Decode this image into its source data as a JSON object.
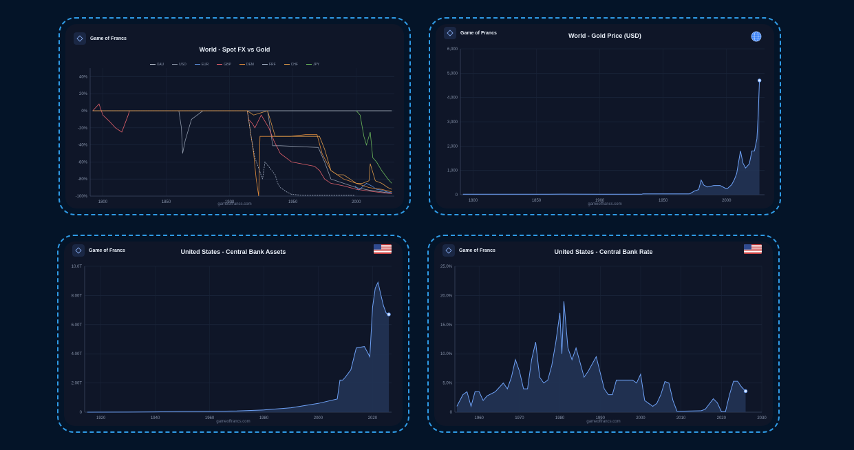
{
  "brand": "Game of Francs",
  "watermark": "gameoffrancs.com",
  "colors": {
    "accent": "#4f8ff7",
    "border": "#2f9be6",
    "bg": "#041428",
    "panel": "#0f1628"
  },
  "charts": [
    {
      "id": "fx",
      "title": "World - Spot FX vs Gold",
      "icon": "none",
      "legend": [
        {
          "name": "XAU",
          "color": "#b8c0cc"
        },
        {
          "name": "USD",
          "color": "#8d97a8"
        },
        {
          "name": "EUR",
          "color": "#5b8dd6"
        },
        {
          "name": "GBP",
          "color": "#e0606b"
        },
        {
          "name": "DEM",
          "color": "#e08c3c"
        },
        {
          "name": "FRF",
          "color": "#a7b3c8"
        },
        {
          "name": "CHF",
          "color": "#d89748"
        },
        {
          "name": "JPY",
          "color": "#69b55a"
        }
      ]
    },
    {
      "id": "gold",
      "title": "World - Gold Price (USD)",
      "icon": "globe-icon"
    },
    {
      "id": "assets",
      "title": "United States - Central Bank Assets",
      "icon": "us-flag-icon"
    },
    {
      "id": "rate",
      "title": "United States - Central Bank Rate",
      "icon": "us-flag-icon"
    }
  ],
  "chart_data": [
    {
      "type": "line",
      "title": "World - Spot FX vs Gold",
      "xlabel": "",
      "ylabel": "",
      "xlim": [
        1790,
        2030
      ],
      "ylim": [
        -100,
        50
      ],
      "x_ticks": [
        "1800",
        "1850",
        "1900",
        "1950",
        "2000"
      ],
      "x_tick_values": [
        1800,
        1850,
        1900,
        1950,
        2000
      ],
      "y_ticks": [
        "40%",
        "20%",
        "0%",
        "-20%",
        "-40%",
        "-60%",
        "-80%",
        "-100%"
      ],
      "y_tick_values": [
        40,
        20,
        0,
        -20,
        -40,
        -60,
        -80,
        -100
      ],
      "series": [
        {
          "name": "XAU",
          "color": "#b8c0cc",
          "x": [
            1792,
            2028
          ],
          "y": [
            0,
            0
          ]
        },
        {
          "name": "USD",
          "color": "#8d97a8",
          "x": [
            1792,
            1860,
            1862,
            1863,
            1865,
            1870,
            1879,
            1930,
            1933,
            1934,
            1940,
            1970,
            1975,
            1980,
            1990,
            2000,
            2010,
            2020,
            2028
          ],
          "y": [
            0,
            0,
            -20,
            -50,
            -35,
            -10,
            0,
            0,
            -30,
            -41,
            -41,
            -43,
            -60,
            -80,
            -85,
            -90,
            -93,
            -95,
            -97
          ]
        },
        {
          "name": "EUR",
          "color": "#5b8dd6",
          "x": [
            1999,
            2002,
            2008,
            2012,
            2016,
            2020,
            2024,
            2028
          ],
          "y": [
            -88,
            -93,
            -85,
            -88,
            -92,
            -93,
            -95,
            -96
          ]
        },
        {
          "name": "GBP",
          "color": "#e0606b",
          "x": [
            1792,
            1797,
            1800,
            1805,
            1810,
            1815,
            1820,
            1821,
            1914,
            1915,
            1918,
            1920,
            1925,
            1931,
            1935,
            1940,
            1949,
            1967,
            1971,
            1975,
            1980,
            1990,
            2000,
            2010,
            2020,
            2028
          ],
          "y": [
            0,
            8,
            -5,
            -12,
            -20,
            -25,
            -5,
            0,
            0,
            -10,
            -15,
            -20,
            -5,
            -20,
            -35,
            -50,
            -60,
            -65,
            -70,
            -80,
            -85,
            -88,
            -92,
            -94,
            -96,
            -97
          ]
        },
        {
          "name": "DEM",
          "color": "#e08c3c",
          "x": [
            1792,
            1871,
            1914,
            1916,
            1919,
            1921,
            1923,
            1924,
            1930,
            1948,
            1960,
            1969,
            1973,
            1980,
            1990,
            2000,
            2010,
            2020,
            2028
          ],
          "y": [
            0,
            0,
            0,
            -20,
            -50,
            -80,
            -100,
            -30,
            -30,
            -30,
            -28,
            -28,
            -50,
            -70,
            -80,
            -85,
            -90,
            -92,
            -95
          ]
        },
        {
          "name": "FRF",
          "color": "#a7b3c8",
          "x": [
            1792,
            1914,
            1917,
            1920,
            1926,
            1928,
            1936,
            1938,
            1940,
            1945,
            1949,
            1958,
            1969,
            1975,
            1985,
            1999
          ],
          "y": [
            0,
            0,
            -30,
            -55,
            -80,
            -60,
            -75,
            -85,
            -90,
            -95,
            -98,
            -99,
            -99,
            -99,
            -99,
            -99
          ]
        },
        {
          "name": "CHF",
          "color": "#d89748",
          "x": [
            1792,
            1850,
            1914,
            1919,
            1930,
            1936,
            1940,
            1971,
            1975,
            1980,
            1985,
            1990,
            1995,
            2000,
            2005,
            2010,
            2011,
            2015,
            2020,
            2025,
            2028
          ],
          "y": [
            0,
            0,
            0,
            -5,
            0,
            -30,
            -30,
            -30,
            -45,
            -70,
            -75,
            -75,
            -80,
            -85,
            -85,
            -82,
            -62,
            -82,
            -85,
            -90,
            -92
          ]
        },
        {
          "name": "JPY",
          "color": "#69b55a",
          "x": [
            2000,
            2003,
            2006,
            2008,
            2011,
            2013,
            2016,
            2020,
            2025,
            2028
          ],
          "y": [
            0,
            -5,
            -30,
            -40,
            -25,
            -55,
            -60,
            -70,
            -80,
            -85
          ]
        }
      ]
    },
    {
      "type": "area",
      "title": "World - Gold Price (USD)",
      "xlabel": "",
      "ylabel": "",
      "xlim": [
        1790,
        2030
      ],
      "ylim": [
        0,
        6000
      ],
      "x_ticks": [
        "1800",
        "1850",
        "1900",
        "1950",
        "2000"
      ],
      "x_tick_values": [
        1800,
        1850,
        1900,
        1950,
        2000
      ],
      "y_ticks": [
        "0",
        "1,000",
        "2,000",
        "3,000",
        "4,000",
        "5,000",
        "6,000"
      ],
      "y_tick_values": [
        0,
        1000,
        2000,
        3000,
        4000,
        5000,
        6000
      ],
      "series": [
        {
          "name": "",
          "x": [
            1792,
            1830,
            1860,
            1870,
            1900,
            1933,
            1934,
            1970,
            1971,
            1975,
            1978,
            1980,
            1982,
            1985,
            1990,
            1995,
            1999,
            2001,
            2004,
            2006,
            2008,
            2011,
            2013,
            2015,
            2018,
            2020,
            2022,
            2024,
            2025,
            2026
          ],
          "y": [
            19,
            19,
            20,
            25,
            20,
            20,
            35,
            35,
            40,
            160,
            210,
            600,
            400,
            320,
            380,
            380,
            270,
            270,
            410,
            600,
            870,
            1800,
            1300,
            1100,
            1270,
            1800,
            1800,
            2300,
            3300,
            4700
          ]
        }
      ]
    },
    {
      "type": "area",
      "title": "United States - Central Bank Assets",
      "xlabel": "",
      "ylabel": "",
      "xlim": [
        1914,
        2027
      ],
      "ylim": [
        0,
        10
      ],
      "x_ticks": [
        "1920",
        "1940",
        "1960",
        "1980",
        "2000",
        "2020"
      ],
      "x_tick_values": [
        1920,
        1940,
        1960,
        1980,
        2000,
        2020
      ],
      "y_ticks": [
        "0",
        "2.00T",
        "4.00T",
        "6.00T",
        "8.00T",
        "10.0T"
      ],
      "y_tick_values": [
        0,
        2,
        4,
        6,
        8,
        10
      ],
      "unit": "T",
      "series": [
        {
          "name": "",
          "x": [
            1915,
            1930,
            1940,
            1950,
            1960,
            1970,
            1980,
            1990,
            2000,
            2007,
            2008,
            2009,
            2010,
            2012,
            2014,
            2017,
            2019,
            2020,
            2021,
            2022,
            2023,
            2024,
            2025,
            2026
          ],
          "y": [
            0.001,
            0.005,
            0.02,
            0.05,
            0.05,
            0.08,
            0.15,
            0.3,
            0.6,
            0.9,
            2.2,
            2.2,
            2.4,
            2.9,
            4.4,
            4.5,
            3.8,
            7.2,
            8.5,
            8.9,
            8.1,
            7.3,
            6.8,
            6.7
          ]
        }
      ]
    },
    {
      "type": "area",
      "title": "United States - Central Bank Rate",
      "xlabel": "",
      "ylabel": "",
      "xlim": [
        1954,
        2030
      ],
      "ylim": [
        0,
        25
      ],
      "x_ticks": [
        "1960",
        "1970",
        "1980",
        "1990",
        "2000",
        "2010",
        "2020",
        "2030"
      ],
      "x_tick_values": [
        1960,
        1970,
        1980,
        1990,
        2000,
        2010,
        2020,
        2030
      ],
      "y_ticks": [
        "0",
        "5.0%",
        "10.0%",
        "15.0%",
        "20.0%",
        "25.0%"
      ],
      "y_tick_values": [
        0,
        5,
        10,
        15,
        20,
        25
      ],
      "unit": "%",
      "series": [
        {
          "name": "",
          "x": [
            1954.5,
            1956,
            1957,
            1958,
            1959,
            1960,
            1961,
            1962,
            1964,
            1966,
            1967,
            1968,
            1969,
            1970,
            1971,
            1972,
            1973,
            1974,
            1975,
            1976,
            1977,
            1978,
            1979,
            1980,
            1980.5,
            1981,
            1982,
            1983,
            1984,
            1986,
            1987,
            1989,
            1991,
            1992,
            1993,
            1994,
            1995,
            1998,
            1999,
            2000,
            2001,
            2002,
            2003,
            2004,
            2005,
            2006,
            2007,
            2008,
            2009,
            2015,
            2016,
            2018,
            2019,
            2020,
            2021,
            2022,
            2023,
            2024,
            2025,
            2026
          ],
          "y": [
            1,
            3,
            3.5,
            1,
            3.5,
            3.5,
            2,
            2.8,
            3.5,
            5,
            4,
            6,
            9,
            7,
            4,
            4,
            9,
            12,
            6,
            5,
            5.5,
            8,
            12,
            17,
            10,
            19,
            11,
            9,
            11,
            6,
            7,
            9.5,
            4,
            3,
            3,
            5.5,
            5.5,
            5.5,
            5,
            6.5,
            2,
            1.5,
            1,
            1.5,
            3,
            5.25,
            5,
            2,
            0.15,
            0.25,
            0.5,
            2.3,
            1.6,
            0.1,
            0.1,
            3,
            5.3,
            5.3,
            4.3,
            3.6
          ]
        }
      ]
    }
  ]
}
